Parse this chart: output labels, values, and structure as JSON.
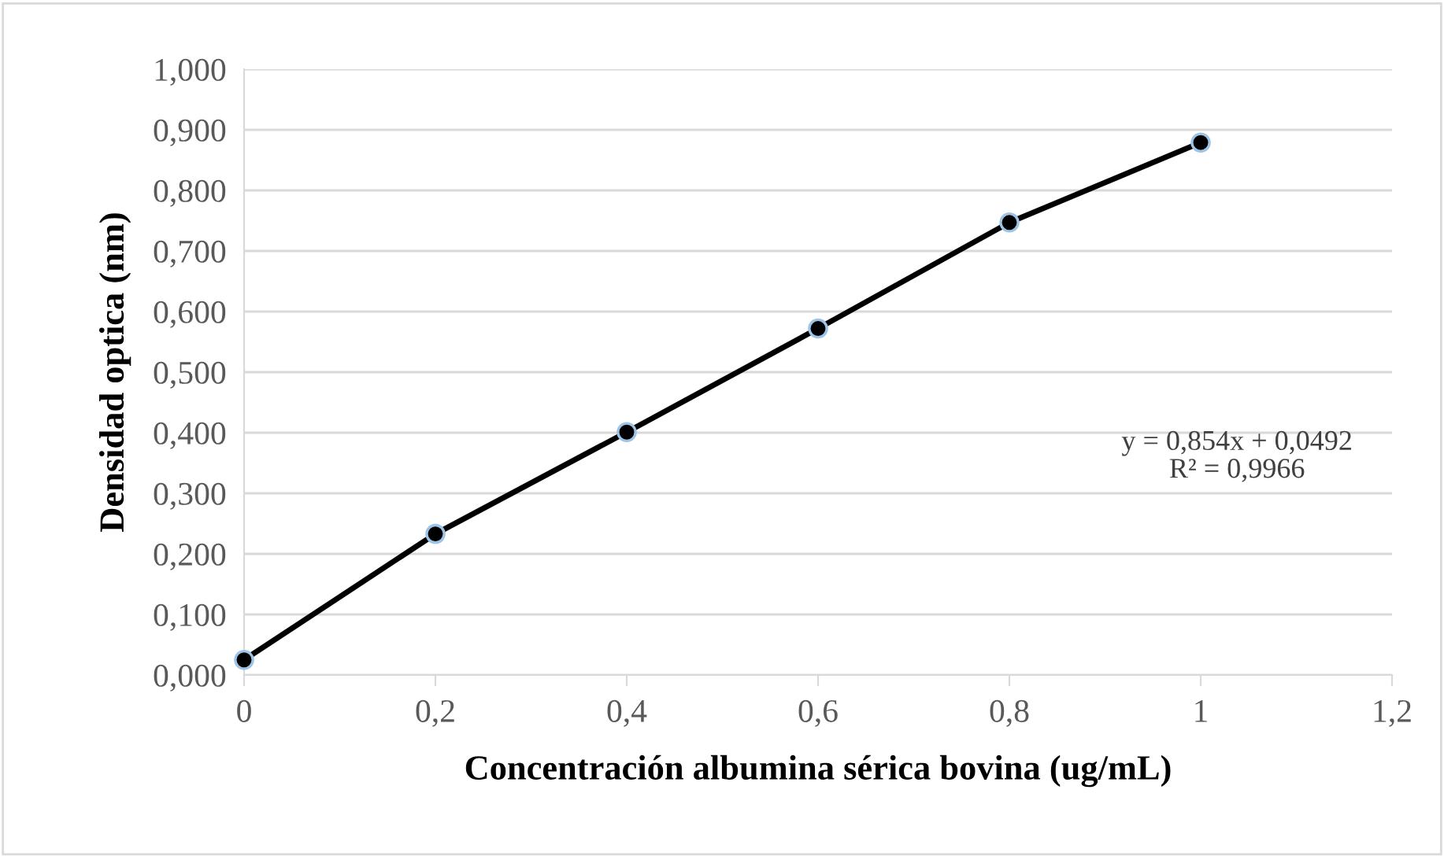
{
  "chart_data": {
    "type": "line",
    "xlabel": "Concentración albumina sérica bovina (ug/mL)",
    "ylabel": "Densidad optica (nm)",
    "x": [
      0,
      0.2,
      0.4,
      0.6,
      0.8,
      1
    ],
    "series": [
      {
        "color": "#000000",
        "values": [
          0.025,
          0.233,
          0.401,
          0.572,
          0.747,
          0.879
        ]
      }
    ],
    "marker": "circle",
    "line_style": "solid",
    "grid": "y",
    "xlim": [
      0,
      1.2
    ],
    "xticks": [
      0,
      {
        "value": 0.2,
        "label": "0,2"
      },
      {
        "value": 0.4,
        "label": "0,4"
      },
      {
        "value": 0.6,
        "label": "0,6"
      },
      {
        "value": 0.8,
        "label": "0,8"
      },
      1,
      {
        "value": 1.2,
        "label": "1,2"
      }
    ],
    "ylim": [
      0,
      1.0
    ],
    "yticks": [
      {
        "value": 0,
        "label": "0,000"
      },
      {
        "value": 0.1,
        "label": "0,100"
      },
      {
        "value": 0.2,
        "label": "0,200"
      },
      {
        "value": 0.3,
        "label": "0,300"
      },
      {
        "value": 0.4,
        "label": "0,400"
      },
      {
        "value": 0.5,
        "label": "0,500"
      },
      {
        "value": 0.6,
        "label": "0,600"
      },
      {
        "value": 0.7,
        "label": "0,700"
      },
      {
        "value": 0.8,
        "label": "0,800"
      },
      {
        "value": 0.9,
        "label": "0,900"
      },
      {
        "value": 1.0,
        "label": "1,000"
      }
    ],
    "annotations": [
      "y = 0,854x + 0,0492\nR² = 0,9966"
    ]
  }
}
